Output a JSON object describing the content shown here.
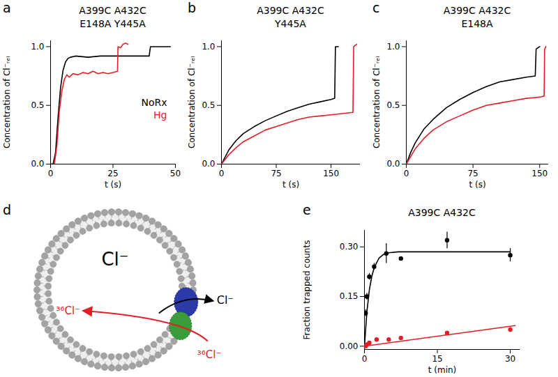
{
  "chart_data": [
    {
      "type": "line",
      "panel": "a",
      "title": [
        "A399C A432C",
        "E148A Y445A"
      ],
      "xlabel": "t (s)",
      "ylabel": "Concentration of Cl⁻ᵣₑₗ",
      "xlim": [
        0,
        50
      ],
      "xticks": [
        0,
        25,
        50
      ],
      "ylim": [
        0,
        1.05
      ],
      "yticks": [
        {
          "value": 0,
          "label": "0.0"
        },
        {
          "value": 0.5,
          "label": "0.5"
        },
        {
          "value": 1,
          "label": "1.0"
        }
      ],
      "legend": "right",
      "series": [
        {
          "name": "NoRx",
          "color": "#000000",
          "x": [
            0,
            1,
            2,
            3,
            4,
            5,
            6,
            7,
            8,
            10,
            15,
            20,
            25,
            30,
            35,
            39.5,
            40,
            45,
            48
          ],
          "values": [
            0,
            0,
            0.1,
            0.4,
            0.65,
            0.8,
            0.87,
            0.9,
            0.91,
            0.92,
            0.91,
            0.92,
            0.92,
            0.92,
            0.92,
            0.92,
            1.0,
            1.0,
            1.0
          ]
        },
        {
          "name": "Hg",
          "color": "#e41e26",
          "x": [
            0,
            1.5,
            2.5,
            3.5,
            4.5,
            5.5,
            6.5,
            7.5,
            9,
            11,
            13,
            15,
            17,
            19,
            21,
            23,
            25,
            26.8,
            27,
            28,
            29,
            30,
            31
          ],
          "values": [
            0,
            0,
            0.15,
            0.45,
            0.62,
            0.72,
            0.76,
            0.74,
            0.77,
            0.76,
            0.78,
            0.77,
            0.79,
            0.77,
            0.78,
            0.77,
            0.78,
            0.79,
            1.0,
            0.99,
            1.02,
            1.03,
            1.02
          ]
        }
      ]
    },
    {
      "type": "line",
      "panel": "b",
      "title": [
        "A399C A432C",
        "Y445A"
      ],
      "xlabel": "t (s)",
      "ylabel": "Concentration of Cl⁻ᵣₑₗ",
      "xlim": [
        0,
        190
      ],
      "xticks": [
        0,
        75,
        150
      ],
      "ylim": [
        0,
        1.05
      ],
      "yticks": [
        {
          "value": 0,
          "label": "0.0"
        },
        {
          "value": 0.5,
          "label": "0.5"
        },
        {
          "value": 1,
          "label": "1.0"
        }
      ],
      "legend": false,
      "series": [
        {
          "name": "NoRx",
          "color": "#000000",
          "x": [
            0,
            10,
            20,
            30,
            45,
            60,
            75,
            90,
            105,
            120,
            135,
            150,
            155,
            156,
            160
          ],
          "values": [
            0,
            0.12,
            0.2,
            0.26,
            0.32,
            0.37,
            0.41,
            0.45,
            0.48,
            0.51,
            0.53,
            0.55,
            0.56,
            1.0,
            1.0
          ]
        },
        {
          "name": "Hg",
          "color": "#e41e26",
          "x": [
            0,
            10,
            20,
            30,
            45,
            60,
            75,
            90,
            105,
            120,
            135,
            150,
            165,
            180,
            181,
            185
          ],
          "values": [
            0,
            0.08,
            0.14,
            0.19,
            0.24,
            0.29,
            0.32,
            0.35,
            0.38,
            0.4,
            0.41,
            0.42,
            0.43,
            0.44,
            1.0,
            1.02
          ]
        }
      ]
    },
    {
      "type": "line",
      "panel": "c",
      "title": [
        "A399C A432C",
        "E148A"
      ],
      "xlabel": "t (s)",
      "ylabel": "Concentration of Cl⁻ᵣₑₗ",
      "xlim": [
        0,
        160
      ],
      "xticks": [
        0,
        75,
        150
      ],
      "ylim": [
        0,
        1.05
      ],
      "yticks": [
        {
          "value": 0,
          "label": "0.0"
        },
        {
          "value": 0.5,
          "label": "0.5"
        },
        {
          "value": 1,
          "label": "1.0"
        }
      ],
      "legend": false,
      "series": [
        {
          "name": "NoRx",
          "color": "#000000",
          "x": [
            0,
            5,
            10,
            20,
            30,
            45,
            60,
            75,
            90,
            105,
            120,
            135,
            145,
            146,
            150
          ],
          "values": [
            0,
            0.1,
            0.18,
            0.3,
            0.38,
            0.48,
            0.55,
            0.61,
            0.66,
            0.7,
            0.72,
            0.74,
            0.75,
            0.98,
            1.0
          ]
        },
        {
          "name": "Hg",
          "color": "#e41e26",
          "x": [
            0,
            10,
            20,
            30,
            45,
            60,
            75,
            90,
            105,
            120,
            135,
            150,
            155,
            155.5,
            157
          ],
          "values": [
            0,
            0.13,
            0.22,
            0.29,
            0.36,
            0.41,
            0.46,
            0.5,
            0.52,
            0.54,
            0.56,
            0.57,
            0.58,
            0.98,
            1.0
          ]
        }
      ]
    },
    {
      "type": "scatter",
      "panel": "e",
      "title": [
        "A399C A432C"
      ],
      "xlabel": "t (min)",
      "ylabel": "Fraction trapped counts",
      "xlim": [
        0,
        32
      ],
      "xticks": [
        0,
        15,
        30
      ],
      "ylim": [
        -0.01,
        0.35
      ],
      "yticks": [
        {
          "value": 0,
          "label": "0.00"
        },
        {
          "value": 0.15,
          "label": "0.15"
        },
        {
          "value": 0.3,
          "label": "0.30"
        }
      ],
      "series": [
        {
          "color": "#000000",
          "marker": "circle",
          "x": [
            0.25,
            0.5,
            1,
            2,
            4.5,
            7.5,
            17,
            30
          ],
          "values": [
            0.1,
            0.15,
            0.21,
            0.24,
            0.28,
            0.265,
            0.32,
            0.275
          ],
          "error": [
            0.01,
            0.01,
            0.01,
            0.01,
            0.03,
            0.005,
            0.025,
            0.02
          ],
          "fit_x": [
            0,
            0.5,
            1,
            1.5,
            2,
            3,
            4,
            5,
            7,
            10,
            15,
            20,
            25,
            30
          ],
          "fit_values": [
            0,
            0.103,
            0.169,
            0.21,
            0.237,
            0.266,
            0.278,
            0.282,
            0.285,
            0.285,
            0.285,
            0.285,
            0.285,
            0.285
          ]
        },
        {
          "color": "#e41e26",
          "marker": "circle",
          "x": [
            0.25,
            0.5,
            1,
            2.5,
            5,
            7.5,
            17,
            30
          ],
          "values": [
            0,
            0.005,
            0.01,
            0.02,
            0.02,
            0.025,
            0.04,
            0.05
          ],
          "error": [
            0.004,
            0.004,
            0.004,
            0.005,
            0.005,
            0.005,
            0.005,
            0.005
          ],
          "fit_x": [
            0,
            31
          ],
          "fit_values": [
            0,
            0.062
          ]
        }
      ]
    }
  ],
  "diagram": {
    "panel": "d",
    "inside_label": "Cl⁻",
    "red_arrow_labels": [
      "³⁶Cl⁻",
      "³⁶Cl⁻"
    ],
    "black_arrow_label": "Cl⁻"
  }
}
